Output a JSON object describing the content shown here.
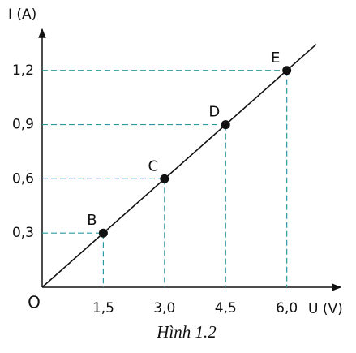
{
  "chart_data": {
    "type": "scatter",
    "x_label": "U (V)",
    "y_label": "I (A)",
    "origin_label": "O",
    "caption": "Hình 1.2",
    "x": [
      1.5,
      3.0,
      4.5,
      6.0
    ],
    "values": [
      0.3,
      0.6,
      0.9,
      1.2
    ],
    "point_labels": [
      "B",
      "C",
      "D",
      "E"
    ],
    "color": "#111111",
    "guide_color": "#2a9aa0",
    "xlim": [
      0,
      7.2
    ],
    "ylim": [
      0,
      1.41
    ],
    "xticks": [
      {
        "value": 1.5,
        "label": "1,5"
      },
      {
        "value": 3.0,
        "label": "3,0"
      },
      {
        "value": 4.5,
        "label": "4,5"
      },
      {
        "value": 6.0,
        "label": "6,0"
      }
    ],
    "yticks": [
      {
        "value": 0.3,
        "label": "0,3"
      },
      {
        "value": 0.6,
        "label": "0,6"
      },
      {
        "value": 0.9,
        "label": "0,9"
      },
      {
        "value": 1.2,
        "label": "1,2"
      }
    ]
  }
}
